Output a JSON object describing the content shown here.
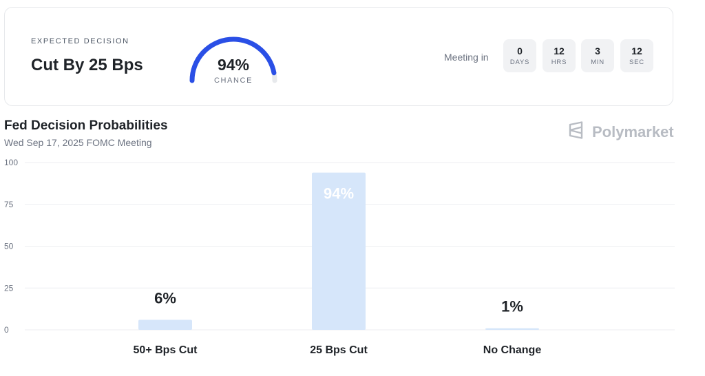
{
  "expected": {
    "label": "EXPECTED DECISION",
    "value": "Cut By 25 Bps",
    "chance_pct": "94%",
    "chance_label": "CHANCE",
    "chance_fraction": 0.94
  },
  "countdown": {
    "label": "Meeting in",
    "units": [
      {
        "value": "0",
        "unit": "DAYS"
      },
      {
        "value": "12",
        "unit": "HRS"
      },
      {
        "value": "3",
        "unit": "MIN"
      },
      {
        "value": "12",
        "unit": "SEC"
      }
    ]
  },
  "brand": {
    "name": "Polymarket",
    "icon": "polymarket-logo-icon"
  },
  "colors": {
    "gauge_fill": "#2a4fe6",
    "gauge_track": "#e7e9ec",
    "bar": "#d6e6fa",
    "grid": "#eceef1",
    "text_dark": "#1f2328",
    "text_muted": "#6b7280"
  },
  "chart_data": {
    "type": "bar",
    "title": "Fed Decision Probabilities",
    "subtitle": "Wed Sep 17, 2025 FOMC Meeting",
    "categories": [
      "50+ Bps Cut",
      "25 Bps Cut",
      "No Change"
    ],
    "values": [
      6,
      94,
      1
    ],
    "value_labels": [
      "6%",
      "94%",
      "1%"
    ],
    "ylim": [
      0,
      100
    ],
    "yticks": [
      0,
      25,
      50,
      75,
      100
    ],
    "grid": true
  }
}
